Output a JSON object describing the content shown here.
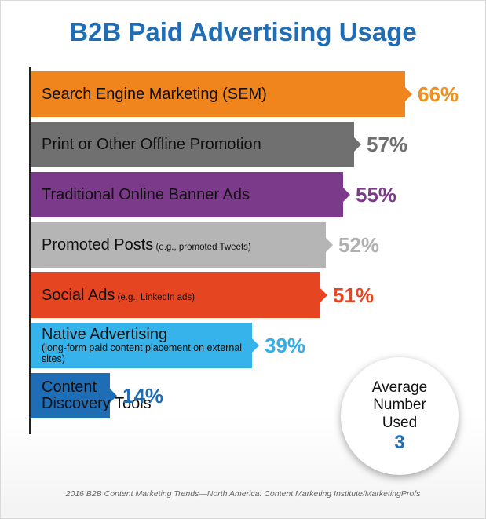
{
  "chart_data": {
    "type": "bar",
    "title": "B2B Paid Advertising Usage",
    "orientation": "horizontal",
    "categories": [
      "Search Engine Marketing (SEM)",
      "Print or Other Offline Promotion",
      "Traditional Online Banner Ads",
      "Promoted Posts (e.g., promoted Tweets)",
      "Social Ads (e.g., LinkedIn ads)",
      "Native Advertising (long-form paid content placement on external sites)",
      "Content Discovery Tools"
    ],
    "values": [
      66,
      57,
      55,
      52,
      51,
      39,
      14
    ],
    "value_unit": "%",
    "xlim": [
      0,
      66
    ],
    "grid": false,
    "legend": "none"
  },
  "bars": [
    {
      "main": "Search Engine Marketing (SEM)",
      "note": "",
      "sub": "",
      "value_label": "66%",
      "color": "#f0851d",
      "value_color": "#f0901d",
      "text_color": "#111111"
    },
    {
      "main": "Print or Other Offline Promotion",
      "note": "",
      "sub": "",
      "value_label": "57%",
      "color": "#707070",
      "value_color": "#6f6f6f",
      "text_color": "#111111"
    },
    {
      "main": "Traditional Online Banner Ads",
      "note": "",
      "sub": "",
      "value_label": "55%",
      "color": "#7b3a8a",
      "value_color": "#7b3a8a",
      "text_color": "#111111"
    },
    {
      "main": "Promoted Posts",
      "note": " (e.g., promoted Tweets)",
      "sub": "",
      "value_label": "52%",
      "color": "#b5b5b5",
      "value_color": "#b0b0b0",
      "text_color": "#111111"
    },
    {
      "main": "Social Ads",
      "note": " (e.g., LinkedIn ads)",
      "sub": "",
      "value_label": "51%",
      "color": "#e64522",
      "value_color": "#e64522",
      "text_color": "#111111"
    },
    {
      "main": "Native Advertising",
      "note": "",
      "sub": "(long-form paid content placement on external sites)",
      "value_label": "39%",
      "color": "#35b3ea",
      "value_color": "#35aee6",
      "text_color": "#111111"
    },
    {
      "main": "Content Discovery Tools",
      "note": "",
      "sub": "",
      "value_label": "14%",
      "color": "#1f6db5",
      "value_color": "#1f6db5",
      "text_color": "#111111"
    }
  ],
  "average": {
    "line1": "Average",
    "line2": "Number",
    "line3": "Used",
    "value": "3"
  },
  "footer": "2016 B2B Content Marketing Trends—North America: Content Marketing Institute/MarketingProfs"
}
